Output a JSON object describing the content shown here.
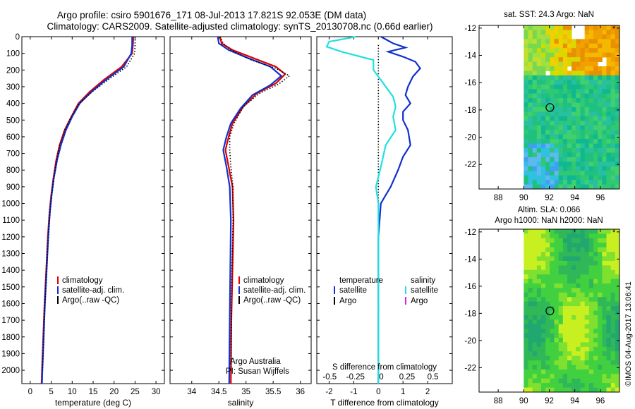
{
  "title_line1": "Argo profile: csiro 5901676_171 08-Jul-2013 17.821S 92.053E (DM data)",
  "title_line2": "Climatology: CARS2009. Satellite-adjusted climatology: synTS_20130708.nc (0.66d earlier)",
  "depth_ticks": [
    0,
    100,
    200,
    300,
    400,
    500,
    600,
    700,
    800,
    900,
    1000,
    1100,
    1200,
    1300,
    1400,
    1500,
    1600,
    1700,
    1800,
    1900,
    2000
  ],
  "depth_range": [
    0,
    2080
  ],
  "colors": {
    "climatology": "#e00000",
    "satellite": "#1030d0",
    "argo": "#000000",
    "sal_sat": "#20e0e0",
    "sal_argo": "#e020e0",
    "axis": "#000000"
  },
  "chart_data": [
    {
      "type": "line",
      "title": "",
      "xlabel": "temperature (deg C)",
      "ylabel": "depth",
      "xlim": [
        -2,
        32
      ],
      "x_ticks": [
        0,
        5,
        10,
        15,
        20,
        25,
        30
      ],
      "x_tick_labels": [
        "0",
        "5",
        "10",
        "15",
        "20",
        "25",
        "30"
      ],
      "legend": [
        "climatology",
        "satellite-adj. clim.",
        "Argo(..raw -QC)"
      ],
      "series": [
        {
          "name": "climatology",
          "style": "solid",
          "color_key": "climatology",
          "points": [
            [
              24.6,
              0
            ],
            [
              24.5,
              50
            ],
            [
              24.3,
              100
            ],
            [
              21.8,
              180
            ],
            [
              17.5,
              260
            ],
            [
              14.2,
              330
            ],
            [
              11.5,
              400
            ],
            [
              9.8,
              480
            ],
            [
              8.2,
              560
            ],
            [
              7.0,
              650
            ],
            [
              6.2,
              740
            ],
            [
              5.5,
              850
            ],
            [
              5.0,
              950
            ],
            [
              4.6,
              1050
            ],
            [
              4.2,
              1200
            ],
            [
              3.8,
              1400
            ],
            [
              3.4,
              1600
            ],
            [
              3.1,
              1800
            ],
            [
              2.8,
              2000
            ],
            [
              2.7,
              2080
            ]
          ]
        },
        {
          "name": "satellite-adj. clim.",
          "style": "solid",
          "color_key": "satellite",
          "points": [
            [
              24.3,
              0
            ],
            [
              24.3,
              50
            ],
            [
              24.1,
              100
            ],
            [
              22.3,
              180
            ],
            [
              18.0,
              260
            ],
            [
              14.6,
              330
            ],
            [
              11.8,
              400
            ],
            [
              10.0,
              480
            ],
            [
              8.5,
              560
            ],
            [
              7.3,
              650
            ],
            [
              6.4,
              740
            ],
            [
              5.6,
              850
            ],
            [
              5.1,
              950
            ],
            [
              4.7,
              1050
            ],
            [
              4.3,
              1200
            ],
            [
              3.9,
              1400
            ],
            [
              3.5,
              1600
            ],
            [
              3.2,
              1800
            ],
            [
              2.9,
              2000
            ],
            [
              2.8,
              2080
            ]
          ]
        },
        {
          "name": "Argo(..raw -QC)",
          "style": "dotted",
          "color_key": "argo",
          "points": [
            [
              25.0,
              0
            ],
            [
              25.0,
              50
            ],
            [
              24.9,
              100
            ],
            [
              23.0,
              180
            ],
            [
              18.5,
              260
            ],
            [
              14.8,
              330
            ],
            [
              11.7,
              400
            ],
            [
              9.8,
              480
            ],
            [
              8.2,
              560
            ],
            [
              7.0,
              650
            ],
            [
              6.3,
              740
            ],
            [
              5.6,
              850
            ],
            [
              5.1,
              950
            ],
            [
              4.7,
              1050
            ],
            [
              4.3,
              1200
            ],
            [
              3.9,
              1400
            ],
            [
              3.5,
              1600
            ],
            [
              3.2,
              1800
            ],
            [
              2.9,
              2000
            ]
          ]
        }
      ]
    },
    {
      "type": "line",
      "title": "",
      "xlabel": "salinity",
      "ylabel": "depth",
      "xlim": [
        33.6,
        36.2
      ],
      "x_ticks": [
        34,
        34.5,
        35,
        35.5,
        36
      ],
      "x_tick_labels": [
        "34",
        "34.5",
        "35",
        "35.5",
        "36"
      ],
      "legend": [
        "climatology",
        "satellite-adj. clim.",
        "Argo(..raw -QC)"
      ],
      "annotation": [
        "Argo Australia",
        "PI: Susan Wijffels"
      ],
      "series": [
        {
          "name": "climatology",
          "style": "solid",
          "color_key": "climatology",
          "points": [
            [
              34.52,
              0
            ],
            [
              34.55,
              40
            ],
            [
              34.75,
              80
            ],
            [
              35.15,
              130
            ],
            [
              35.55,
              180
            ],
            [
              35.72,
              225
            ],
            [
              35.55,
              280
            ],
            [
              35.2,
              340
            ],
            [
              34.95,
              420
            ],
            [
              34.75,
              520
            ],
            [
              34.68,
              600
            ],
            [
              34.62,
              680
            ],
            [
              34.68,
              780
            ],
            [
              34.75,
              900
            ],
            [
              34.77,
              1100
            ],
            [
              34.75,
              1400
            ],
            [
              34.73,
              1700
            ],
            [
              34.72,
              2080
            ]
          ]
        },
        {
          "name": "satellite-adj. clim.",
          "style": "solid",
          "color_key": "satellite",
          "points": [
            [
              34.48,
              0
            ],
            [
              34.5,
              40
            ],
            [
              34.68,
              80
            ],
            [
              35.05,
              130
            ],
            [
              35.45,
              180
            ],
            [
              35.65,
              235
            ],
            [
              35.45,
              290
            ],
            [
              35.12,
              350
            ],
            [
              34.9,
              430
            ],
            [
              34.72,
              520
            ],
            [
              34.64,
              600
            ],
            [
              34.58,
              680
            ],
            [
              34.64,
              780
            ],
            [
              34.7,
              900
            ],
            [
              34.72,
              1100
            ],
            [
              34.71,
              1400
            ],
            [
              34.7,
              1700
            ],
            [
              34.69,
              2080
            ]
          ]
        },
        {
          "name": "Argo(..raw -QC)",
          "style": "dotted",
          "color_key": "argo",
          "points": [
            [
              34.52,
              0
            ],
            [
              34.58,
              40
            ],
            [
              34.72,
              80
            ],
            [
              35.1,
              140
            ],
            [
              35.55,
              190
            ],
            [
              35.8,
              235
            ],
            [
              35.6,
              285
            ],
            [
              35.25,
              340
            ],
            [
              34.95,
              420
            ],
            [
              34.78,
              520
            ],
            [
              34.7,
              600
            ],
            [
              34.7,
              680
            ],
            [
              34.72,
              780
            ],
            [
              34.76,
              900
            ],
            [
              34.76,
              1100
            ],
            [
              34.74,
              1400
            ],
            [
              34.73,
              1700
            ],
            [
              34.72,
              2000
            ]
          ]
        }
      ]
    },
    {
      "type": "line",
      "title": "",
      "xlabel": "T difference from climatology",
      "xlabel_top": "S difference from climatology",
      "ylabel": "depth",
      "xlim": [
        -2.5,
        3.0
      ],
      "x_ticks": [
        -2,
        -1,
        0,
        1,
        2
      ],
      "x_tick_labels": [
        "-2",
        "-1",
        "0",
        "1",
        "2"
      ],
      "x_ticks_S": [
        -0.5,
        -0.25,
        0,
        0.25,
        0.5
      ],
      "x_tick_labels_S": [
        "-0.5",
        "-0.25",
        "0",
        "0.25",
        "0.5"
      ],
      "legend_headers": [
        "temperature",
        "salinity"
      ],
      "legend": [
        "satellite",
        "Argo",
        "satellite",
        "Argo"
      ],
      "series": [
        {
          "name": "temperature satellite",
          "style": "solid",
          "color_key": "satellite",
          "points": [
            [
              0.1,
              0
            ],
            [
              0.6,
              40
            ],
            [
              1.1,
              65
            ],
            [
              0.4,
              90
            ],
            [
              1.0,
              120
            ],
            [
              1.5,
              150
            ],
            [
              1.7,
              190
            ],
            [
              1.4,
              240
            ],
            [
              1.2,
              300
            ],
            [
              1.1,
              350
            ],
            [
              1.3,
              400
            ],
            [
              1.0,
              450
            ],
            [
              1.0,
              500
            ],
            [
              1.2,
              560
            ],
            [
              1.3,
              650
            ],
            [
              1.0,
              720
            ],
            [
              0.8,
              800
            ],
            [
              0.5,
              900
            ],
            [
              0.3,
              950
            ],
            [
              0.1,
              1000
            ],
            [
              0.0,
              1200
            ],
            [
              0.0,
              1500
            ],
            [
              0.0,
              1800
            ],
            [
              0.0,
              2080
            ]
          ]
        },
        {
          "name": "temperature Argo",
          "style": "dotted",
          "color_key": "argo",
          "points": [
            [
              0.0,
              50
            ],
            [
              0.0,
              2080
            ]
          ]
        },
        {
          "name": "salinity satellite",
          "style": "solid",
          "color_key": "sal_sat",
          "points": [
            [
              -0.9,
              0
            ],
            [
              -2.0,
              30
            ],
            [
              -2.1,
              60
            ],
            [
              -1.5,
              90
            ],
            [
              -0.2,
              140
            ],
            [
              -0.2,
              200
            ],
            [
              0.2,
              280
            ],
            [
              0.6,
              360
            ],
            [
              0.7,
              420
            ],
            [
              0.6,
              480
            ],
            [
              0.7,
              560
            ],
            [
              0.3,
              650
            ],
            [
              0.1,
              780
            ],
            [
              -0.1,
              900
            ],
            [
              0.0,
              1000
            ],
            [
              0.0,
              1500
            ],
            [
              0.0,
              2080
            ]
          ]
        }
      ]
    },
    {
      "type": "heatmap",
      "title": "sat. SST: 24.3 Argo: NaN",
      "xlim": [
        86.5,
        97.5
      ],
      "ylim": [
        -23.8,
        -11.8
      ],
      "x_ticks": [
        88,
        90,
        92,
        94,
        96
      ],
      "x_tick_labels": [
        "88",
        "90",
        "92",
        "94",
        "96"
      ],
      "y_ticks": [
        -12,
        -14,
        -16,
        -18,
        -20,
        -22
      ],
      "y_tick_labels": [
        "-12",
        "-14",
        "-16",
        "-18",
        "-20",
        "-22"
      ],
      "marker": [
        92.05,
        -17.82
      ]
    },
    {
      "type": "heatmap",
      "title": [
        "Altim. SLA: 0.066",
        "Argo h1000: NaN h2000: NaN"
      ],
      "xlim": [
        86.5,
        97.5
      ],
      "ylim": [
        -23.8,
        -11.8
      ],
      "x_ticks": [
        88,
        90,
        92,
        94,
        96
      ],
      "x_tick_labels": [
        "88",
        "90",
        "92",
        "94",
        "96"
      ],
      "y_ticks": [
        -12,
        -14,
        -16,
        -18,
        -20,
        -22
      ],
      "y_tick_labels": [
        "-12",
        "-14",
        "-16",
        "-18",
        "-20",
        "-22"
      ],
      "marker": [
        92.05,
        -17.82
      ]
    }
  ],
  "credit": "©IMOS 04-Aug-2017 13:06:41"
}
